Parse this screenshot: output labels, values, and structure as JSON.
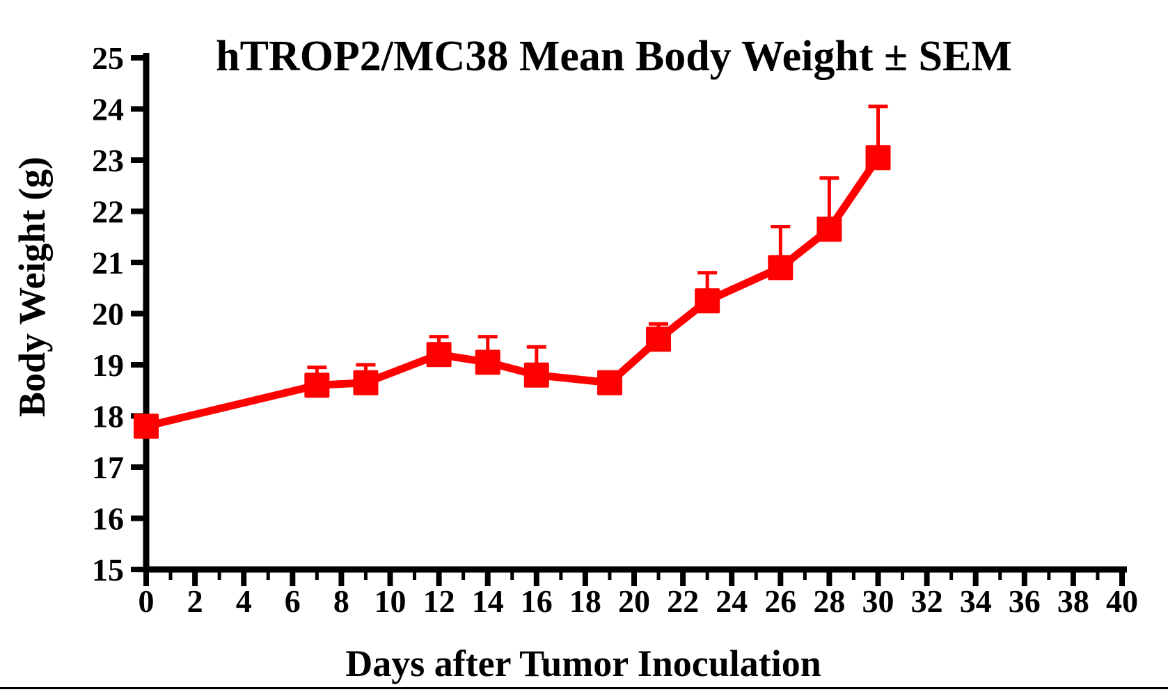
{
  "chart_data": {
    "type": "line",
    "title": "hTROP2/MC38 Mean Body Weight ± SEM",
    "xlabel": "Days after Tumor Inoculation",
    "ylabel": "Body Weight (g)",
    "xlim": [
      0,
      40
    ],
    "ylim": [
      15,
      25
    ],
    "x_major_step": 2,
    "x_minor_step": 1,
    "y_step": 1,
    "x_tick_labels": [
      "0",
      "2",
      "4",
      "6",
      "8",
      "10",
      "12",
      "14",
      "16",
      "18",
      "20",
      "22",
      "24",
      "26",
      "28",
      "30",
      "32",
      "34",
      "36",
      "38",
      "40"
    ],
    "y_tick_labels": [
      "15",
      "16",
      "17",
      "18",
      "19",
      "20",
      "21",
      "22",
      "23",
      "24",
      "25"
    ],
    "grid": false,
    "legend": "none",
    "error_bars": "upper only, SEM",
    "axis_color": "#000000",
    "background_color": "#ffffff",
    "series": [
      {
        "name": "hTROP2/MC38 Mean Body Weight",
        "color": "#FF0000",
        "marker": "square",
        "x": [
          0,
          7,
          9,
          12,
          14,
          16,
          19,
          21,
          23,
          26,
          28,
          30
        ],
        "mean": [
          17.8,
          18.6,
          18.65,
          19.2,
          19.05,
          18.8,
          18.65,
          19.5,
          20.25,
          20.9,
          21.65,
          23.05
        ],
        "sem_upper": [
          0,
          0.35,
          0.35,
          0.35,
          0.5,
          0.55,
          0,
          0.3,
          0.55,
          0.8,
          1.0,
          1.0
        ]
      }
    ]
  }
}
